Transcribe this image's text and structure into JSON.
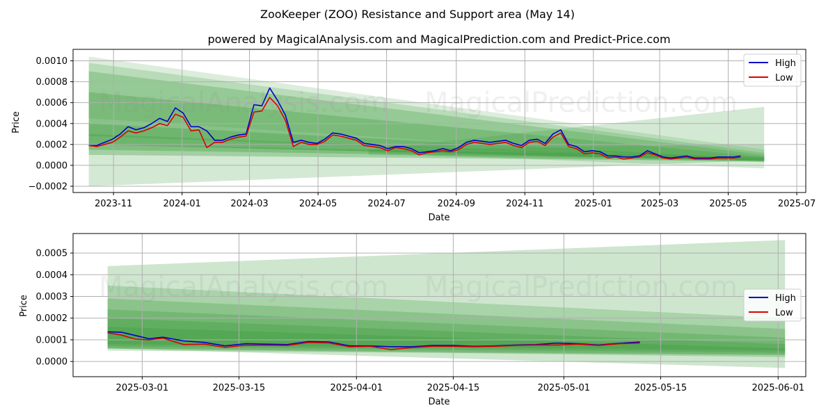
{
  "title": "ZooKeeper (ZOO) Resistance and Support area (May 14)",
  "subtitle": "powered by MagicalAnalysis.com and MagicalPrediction.com and Predict-Price.com",
  "watermark": {
    "left": "MagicalAnalysis.com",
    "right": "MagicalPrediction.com"
  },
  "colors": {
    "high": "#0000cc",
    "low": "#dd0000",
    "band": "#3c9a3c",
    "grid": "#b0b0b0"
  },
  "chart_data": [
    {
      "type": "line",
      "xlabel": "Date",
      "ylabel": "Price",
      "xlim": [
        "2023-09-26",
        "2025-07-09"
      ],
      "ylim": [
        -0.00026,
        0.00111
      ],
      "xticks": [
        "2023-11-01",
        "2024-01-01",
        "2024-03-01",
        "2024-05-01",
        "2024-07-01",
        "2024-09-01",
        "2024-11-01",
        "2025-01-01",
        "2025-03-01",
        "2025-05-01",
        "2025-07-01"
      ],
      "xtick_labels": [
        "2023-11",
        "2024-01",
        "2024-03",
        "2024-05",
        "2024-07",
        "2024-09",
        "2024-11",
        "2025-01",
        "2025-03",
        "2025-05",
        "2025-07"
      ],
      "yticks": [
        -0.0002,
        0,
        0.0002,
        0.0004,
        0.0006,
        0.0008,
        0.001
      ],
      "ytick_labels": [
        "−0.0002",
        "0.0000",
        "0.0002",
        "0.0004",
        "0.0006",
        "0.0008",
        "0.0010"
      ],
      "grid": true,
      "legend": {
        "position": "top-right",
        "entries": [
          "High",
          "Low"
        ]
      },
      "bands": [
        {
          "x": [
            "2023-10-10",
            "2025-06-02"
          ],
          "upper": [
            0.00104,
            0.00015
          ],
          "lower": [
            0.00045,
            3e-05
          ]
        },
        {
          "x": [
            "2023-10-10",
            "2025-06-02"
          ],
          "upper": [
            0.00098,
            0.00012
          ],
          "lower": [
            -0.0002,
            5e-05
          ]
        },
        {
          "x": [
            "2023-10-10",
            "2025-06-02"
          ],
          "upper": [
            0.0009,
            0.0001
          ],
          "lower": [
            0.00028,
            5e-05
          ]
        },
        {
          "x": [
            "2023-10-10",
            "2025-06-02"
          ],
          "upper": [
            0.0007,
            8e-05
          ],
          "lower": [
            0.0002,
            4e-05
          ]
        },
        {
          "x": [
            "2023-10-10",
            "2025-06-02"
          ],
          "upper": [
            0.0004,
            6e-05
          ],
          "lower": [
            0.0001,
            4e-05
          ]
        },
        {
          "x": [
            "2023-10-10",
            "2025-06-02"
          ],
          "upper": [
            0.0003,
            5e-05
          ],
          "lower": [
            0.0002,
            4e-05
          ]
        },
        {
          "x": [
            "2023-10-10",
            "2025-06-02"
          ],
          "upper": [
            0.0002,
            8e-05
          ],
          "lower": [
            0.00015,
            5e-05
          ]
        },
        {
          "x": [
            "2024-06-15",
            "2025-06-02"
          ],
          "upper": [
            0.00015,
            0.00056
          ],
          "lower": [
            0.0001,
            3e-05
          ]
        },
        {
          "x": [
            "2024-06-15",
            "2025-06-02"
          ],
          "upper": [
            0.00015,
            0.0002
          ],
          "lower": [
            0.00012,
            -3e-05
          ]
        }
      ],
      "series": [
        {
          "name": "High",
          "x": [
            "2023-10-10",
            "2023-10-17",
            "2023-10-24",
            "2023-10-31",
            "2023-11-07",
            "2023-11-14",
            "2023-11-21",
            "2023-11-28",
            "2023-12-05",
            "2023-12-12",
            "2023-12-19",
            "2023-12-26",
            "2024-01-02",
            "2024-01-09",
            "2024-01-16",
            "2024-01-23",
            "2024-01-30",
            "2024-02-06",
            "2024-02-13",
            "2024-02-20",
            "2024-02-27",
            "2024-03-05",
            "2024-03-12",
            "2024-03-19",
            "2024-03-26",
            "2024-04-02",
            "2024-04-09",
            "2024-04-16",
            "2024-04-23",
            "2024-04-30",
            "2024-05-07",
            "2024-05-14",
            "2024-05-21",
            "2024-05-28",
            "2024-06-04",
            "2024-06-11",
            "2024-06-18",
            "2024-06-25",
            "2024-07-02",
            "2024-07-09",
            "2024-07-16",
            "2024-07-23",
            "2024-07-30",
            "2024-08-06",
            "2024-08-13",
            "2024-08-20",
            "2024-08-27",
            "2024-09-03",
            "2024-09-10",
            "2024-09-17",
            "2024-09-24",
            "2024-10-01",
            "2024-10-08",
            "2024-10-15",
            "2024-10-22",
            "2024-10-29",
            "2024-11-05",
            "2024-11-12",
            "2024-11-19",
            "2024-11-26",
            "2024-12-03",
            "2024-12-10",
            "2024-12-17",
            "2024-12-24",
            "2024-12-31",
            "2025-01-07",
            "2025-01-14",
            "2025-01-21",
            "2025-01-28",
            "2025-02-04",
            "2025-02-11",
            "2025-02-18",
            "2025-02-25",
            "2025-03-04",
            "2025-03-11",
            "2025-03-18",
            "2025-03-25",
            "2025-04-01",
            "2025-04-08",
            "2025-04-15",
            "2025-04-22",
            "2025-04-29",
            "2025-05-06",
            "2025-05-12"
          ],
          "values": [
            0.00019,
            0.00019,
            0.00022,
            0.00025,
            0.0003,
            0.00037,
            0.00034,
            0.00036,
            0.0004,
            0.00045,
            0.00042,
            0.00055,
            0.0005,
            0.00037,
            0.00037,
            0.00033,
            0.00024,
            0.00024,
            0.00027,
            0.00029,
            0.0003,
            0.00058,
            0.00057,
            0.00074,
            0.00062,
            0.00048,
            0.00022,
            0.00024,
            0.00022,
            0.00021,
            0.00025,
            0.00031,
            0.0003,
            0.00028,
            0.00026,
            0.00021,
            0.0002,
            0.00019,
            0.00016,
            0.00018,
            0.00018,
            0.00016,
            0.00012,
            0.00013,
            0.00014,
            0.00016,
            0.00014,
            0.00017,
            0.00022,
            0.00024,
            0.00023,
            0.00022,
            0.00023,
            0.00024,
            0.00021,
            0.00019,
            0.00024,
            0.00025,
            0.00021,
            0.0003,
            0.00034,
            0.0002,
            0.00018,
            0.00013,
            0.00014,
            0.00013,
            9e-05,
            9e-05,
            8e-05,
            8e-05,
            9e-05,
            0.00014,
            0.00011,
            8e-05,
            7e-05,
            8e-05,
            9e-05,
            7e-05,
            7e-05,
            7e-05,
            8e-05,
            8e-05,
            8e-05,
            9e-05
          ]
        },
        {
          "name": "Low",
          "x": [
            "2023-10-10",
            "2023-10-17",
            "2023-10-24",
            "2023-10-31",
            "2023-11-07",
            "2023-11-14",
            "2023-11-21",
            "2023-11-28",
            "2023-12-05",
            "2023-12-12",
            "2023-12-19",
            "2023-12-26",
            "2024-01-02",
            "2024-01-09",
            "2024-01-16",
            "2024-01-23",
            "2024-01-30",
            "2024-02-06",
            "2024-02-13",
            "2024-02-20",
            "2024-02-27",
            "2024-03-05",
            "2024-03-12",
            "2024-03-19",
            "2024-03-26",
            "2024-04-02",
            "2024-04-09",
            "2024-04-16",
            "2024-04-23",
            "2024-04-30",
            "2024-05-07",
            "2024-05-14",
            "2024-05-21",
            "2024-05-28",
            "2024-06-04",
            "2024-06-11",
            "2024-06-18",
            "2024-06-25",
            "2024-07-02",
            "2024-07-09",
            "2024-07-16",
            "2024-07-23",
            "2024-07-30",
            "2024-08-06",
            "2024-08-13",
            "2024-08-20",
            "2024-08-27",
            "2024-09-03",
            "2024-09-10",
            "2024-09-17",
            "2024-09-24",
            "2024-10-01",
            "2024-10-08",
            "2024-10-15",
            "2024-10-22",
            "2024-10-29",
            "2024-11-05",
            "2024-11-12",
            "2024-11-19",
            "2024-11-26",
            "2024-12-03",
            "2024-12-10",
            "2024-12-17",
            "2024-12-24",
            "2024-12-31",
            "2025-01-07",
            "2025-01-14",
            "2025-01-21",
            "2025-01-28",
            "2025-02-04",
            "2025-02-11",
            "2025-02-18",
            "2025-02-25",
            "2025-03-04",
            "2025-03-11",
            "2025-03-18",
            "2025-03-25",
            "2025-04-01",
            "2025-04-08",
            "2025-04-15",
            "2025-04-22",
            "2025-04-29",
            "2025-05-06",
            "2025-05-12"
          ],
          "values": [
            0.00019,
            0.00018,
            0.0002,
            0.00022,
            0.00027,
            0.00033,
            0.00031,
            0.00033,
            0.00036,
            0.0004,
            0.00038,
            0.00049,
            0.00046,
            0.00033,
            0.00034,
            0.00017,
            0.00022,
            0.00022,
            0.00025,
            0.00027,
            0.00028,
            0.00051,
            0.00052,
            0.00065,
            0.00057,
            0.00043,
            0.00018,
            0.00022,
            0.0002,
            0.0002,
            0.00023,
            0.00029,
            0.00028,
            0.00026,
            0.00024,
            0.00019,
            0.00018,
            0.00017,
            0.00014,
            0.00017,
            0.00016,
            0.00014,
            0.0001,
            0.00012,
            0.00013,
            0.00014,
            0.00013,
            0.00015,
            0.0002,
            0.00022,
            0.00021,
            0.0002,
            0.00021,
            0.00022,
            0.00019,
            0.00017,
            0.00022,
            0.00023,
            0.00019,
            0.00027,
            0.00031,
            0.00018,
            0.00016,
            0.00011,
            0.00012,
            0.00011,
            7e-05,
            8e-05,
            6e-05,
            7e-05,
            8e-05,
            0.00012,
            0.0001,
            7e-05,
            6e-05,
            7e-05,
            8e-05,
            6e-05,
            6e-05,
            6e-05,
            7e-05,
            7e-05,
            7e-05,
            8e-05
          ]
        }
      ]
    },
    {
      "type": "line",
      "xlabel": "Date",
      "ylabel": "Price",
      "xlim": [
        "2025-02-19",
        "2025-06-05"
      ],
      "ylim": [
        -7e-05,
        0.00059
      ],
      "xticks": [
        "2025-03-01",
        "2025-03-15",
        "2025-04-01",
        "2025-04-15",
        "2025-05-01",
        "2025-05-15",
        "2025-06-01"
      ],
      "xtick_labels": [
        "2025-03-01",
        "2025-03-15",
        "2025-04-01",
        "2025-04-15",
        "2025-05-01",
        "2025-05-15",
        "2025-06-01"
      ],
      "yticks": [
        0,
        0.0001,
        0.0002,
        0.0003,
        0.0004,
        0.0005
      ],
      "ytick_labels": [
        "0.0000",
        "0.0001",
        "0.0002",
        "0.0003",
        "0.0004",
        "0.0005"
      ],
      "grid": true,
      "legend": {
        "position": "center-right",
        "entries": [
          "High",
          "Low"
        ]
      },
      "bands": [
        {
          "x": [
            "2025-02-24",
            "2025-06-02"
          ],
          "upper": [
            0.00044,
            0.00056
          ],
          "lower": [
            5e-05,
            3e-05
          ]
        },
        {
          "x": [
            "2025-02-24",
            "2025-06-02"
          ],
          "upper": [
            0.00035,
            0.0002
          ],
          "lower": [
            6e-05,
            -3e-05
          ]
        },
        {
          "x": [
            "2025-02-24",
            "2025-06-02"
          ],
          "upper": [
            0.00029,
            0.00015
          ],
          "lower": [
            6e-05,
            2e-05
          ]
        },
        {
          "x": [
            "2025-02-24",
            "2025-06-02"
          ],
          "upper": [
            0.00024,
            0.00011
          ],
          "lower": [
            6e-05,
            3e-05
          ]
        },
        {
          "x": [
            "2025-02-24",
            "2025-06-02"
          ],
          "upper": [
            0.0002,
            8e-05
          ],
          "lower": [
            7e-05,
            4e-05
          ]
        },
        {
          "x": [
            "2025-02-24",
            "2025-06-02"
          ],
          "upper": [
            0.00016,
            6e-05
          ],
          "lower": [
            8e-05,
            5e-05
          ]
        }
      ],
      "series": [
        {
          "name": "High",
          "x": [
            "2025-02-24",
            "2025-02-26",
            "2025-02-28",
            "2025-03-02",
            "2025-03-04",
            "2025-03-07",
            "2025-03-10",
            "2025-03-13",
            "2025-03-16",
            "2025-03-19",
            "2025-03-22",
            "2025-03-25",
            "2025-03-28",
            "2025-03-31",
            "2025-04-03",
            "2025-04-06",
            "2025-04-09",
            "2025-04-12",
            "2025-04-15",
            "2025-04-18",
            "2025-04-21",
            "2025-04-24",
            "2025-04-27",
            "2025-04-30",
            "2025-05-03",
            "2025-05-06",
            "2025-05-09",
            "2025-05-12"
          ],
          "values": [
            0.000137,
            0.000135,
            0.00012,
            0.000105,
            0.000112,
            9.5e-05,
            8.8e-05,
            7.2e-05,
            8.2e-05,
            8e-05,
            7.8e-05,
            9.2e-05,
            9e-05,
            7.2e-05,
            7.2e-05,
            6.8e-05,
            6.8e-05,
            7.4e-05,
            7.4e-05,
            7e-05,
            7.2e-05,
            7.6e-05,
            7.8e-05,
            8.5e-05,
            8.2e-05,
            7.6e-05,
            8.4e-05,
            9e-05
          ]
        },
        {
          "name": "Low",
          "x": [
            "2025-02-24",
            "2025-02-26",
            "2025-02-28",
            "2025-03-02",
            "2025-03-04",
            "2025-03-07",
            "2025-03-10",
            "2025-03-13",
            "2025-03-16",
            "2025-03-19",
            "2025-03-22",
            "2025-03-25",
            "2025-03-28",
            "2025-03-31",
            "2025-04-03",
            "2025-04-06",
            "2025-04-09",
            "2025-04-12",
            "2025-04-15",
            "2025-04-18",
            "2025-04-21",
            "2025-04-24",
            "2025-04-27",
            "2025-04-30",
            "2025-05-03",
            "2025-05-06",
            "2025-05-09",
            "2025-05-12"
          ],
          "values": [
            0.000132,
            0.000122,
            0.000103,
            0.0001,
            0.000108,
            7.8e-05,
            8e-05,
            6.5e-05,
            7.5e-05,
            7.5e-05,
            7.4e-05,
            8.8e-05,
            8.6e-05,
            6.8e-05,
            7e-05,
            5.5e-05,
            6.4e-05,
            7e-05,
            7e-05,
            6.8e-05,
            7e-05,
            7.4e-05,
            7.6e-05,
            7.6e-05,
            8e-05,
            7.4e-05,
            8.2e-05,
            8.5e-05
          ]
        }
      ]
    }
  ]
}
